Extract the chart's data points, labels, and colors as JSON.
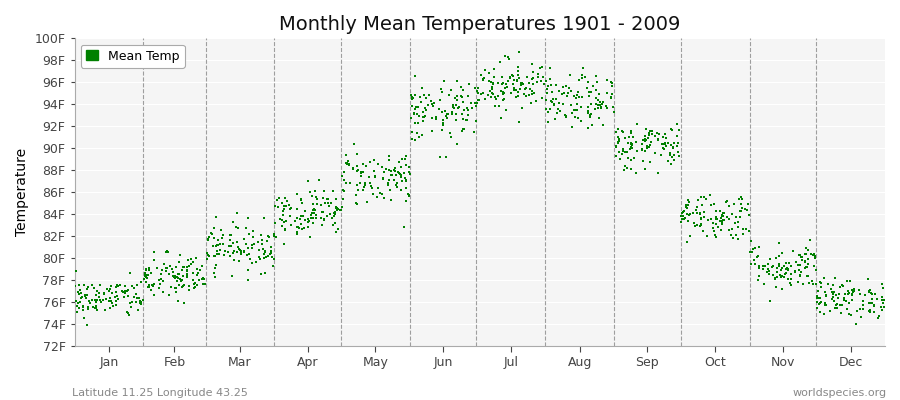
{
  "title": "Monthly Mean Temperatures 1901 - 2009",
  "ylabel": "Temperature",
  "month_names": [
    "Jan",
    "Feb",
    "Mar",
    "Apr",
    "May",
    "Jun",
    "Jul",
    "Aug",
    "Sep",
    "Oct",
    "Nov",
    "Dec"
  ],
  "month_days": [
    31,
    28,
    31,
    30,
    31,
    30,
    31,
    31,
    30,
    31,
    30,
    31
  ],
  "ytick_labels": [
    "72F",
    "74F",
    "76F",
    "78F",
    "80F",
    "82F",
    "84F",
    "86F",
    "88F",
    "90F",
    "92F",
    "94F",
    "96F",
    "98F",
    "100F"
  ],
  "ytick_values": [
    72,
    74,
    76,
    78,
    80,
    82,
    84,
    86,
    88,
    90,
    92,
    94,
    96,
    98,
    100
  ],
  "ylim": [
    72,
    100
  ],
  "dot_color": "#008000",
  "legend_label": "Mean Temp",
  "subtitle_left": "Latitude 11.25 Longitude 43.25",
  "subtitle_right": "worldspecies.org",
  "background_color": "#ffffff",
  "plot_bg_color": "#f5f5f5",
  "n_years": 109,
  "monthly_means": [
    76.3,
    78.2,
    81.0,
    84.2,
    87.3,
    93.2,
    95.8,
    94.2,
    90.2,
    83.8,
    79.2,
    76.3
  ],
  "monthly_stds": [
    0.9,
    1.1,
    1.1,
    1.1,
    1.3,
    1.4,
    1.2,
    1.2,
    1.1,
    1.1,
    1.1,
    0.9
  ],
  "marker_size": 3,
  "title_fontsize": 14,
  "axis_fontsize": 10,
  "tick_fontsize": 9
}
